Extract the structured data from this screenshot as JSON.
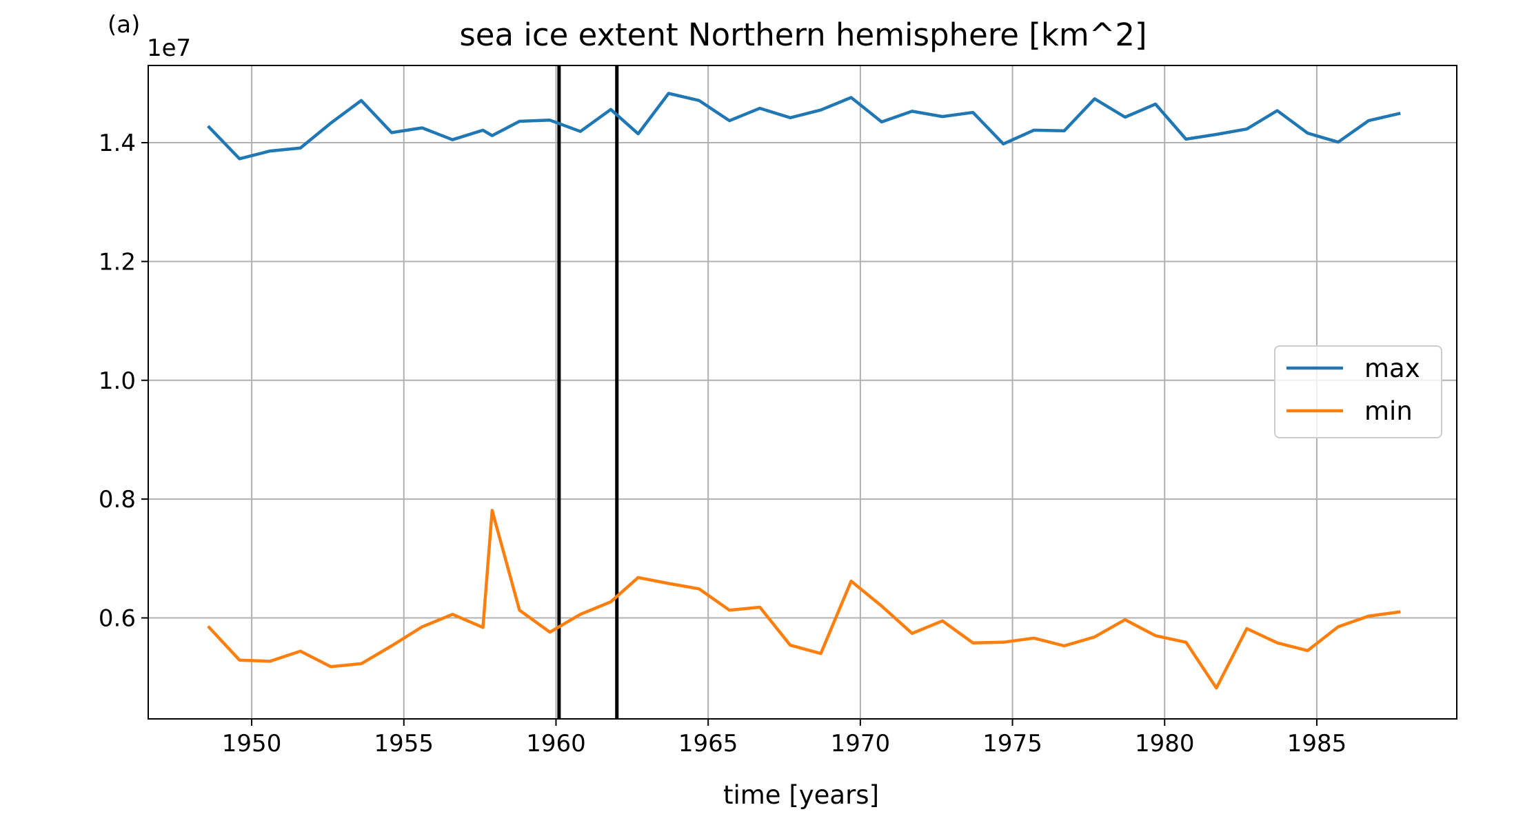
{
  "panel_label": "(a)",
  "chart_data": {
    "type": "line",
    "title": "sea ice extent Northern hemisphere [km^2]",
    "xlabel": "time [years]",
    "ylabel": "",
    "y_offset_label": "1e7",
    "xlim": [
      1946.6,
      1989.6
    ],
    "ylim": [
      4300000.0,
      15300000.0
    ],
    "xticks": [
      1950,
      1955,
      1960,
      1965,
      1970,
      1975,
      1980,
      1985
    ],
    "xtick_labels": [
      "1950",
      "1955",
      "1960",
      "1965",
      "1970",
      "1975",
      "1980",
      "1985"
    ],
    "yticks": [
      6000000,
      8000000,
      10000000,
      12000000,
      14000000
    ],
    "ytick_labels": [
      "0.6",
      "0.8",
      "1.0",
      "1.2",
      "1.4"
    ],
    "grid": true,
    "legend_position": "center-right",
    "vertical_lines": [
      1960.1,
      1962.0
    ],
    "series": [
      {
        "name": "max",
        "color": "#1f77b4",
        "x": [
          1948.6,
          1949.6,
          1950.6,
          1951.6,
          1952.6,
          1953.6,
          1954.6,
          1955.6,
          1956.6,
          1957.6,
          1957.9,
          1958.8,
          1959.8,
          1960.8,
          1961.8,
          1962.7,
          1963.7,
          1964.7,
          1965.7,
          1966.7,
          1967.7,
          1968.7,
          1969.7,
          1970.7,
          1971.7,
          1972.7,
          1973.7,
          1974.7,
          1975.7,
          1976.7,
          1977.7,
          1978.7,
          1979.7,
          1980.7,
          1981.7,
          1982.7,
          1983.7,
          1984.7,
          1985.7,
          1986.7,
          1987.7
        ],
        "y": [
          14260000,
          13730000,
          13860000,
          13910000,
          14330000,
          14710000,
          14170000,
          14250000,
          14050000,
          14210000,
          14120000,
          14360000,
          14380000,
          14190000,
          14560000,
          14150000,
          14830000,
          14710000,
          14370000,
          14580000,
          14420000,
          14550000,
          14760000,
          14350000,
          14530000,
          14440000,
          14510000,
          13980000,
          14210000,
          14200000,
          14740000,
          14430000,
          14650000,
          14060000,
          14140000,
          14230000,
          14540000,
          14160000,
          14010000,
          14370000,
          14490000
        ]
      },
      {
        "name": "min",
        "color": "#ff7f0e",
        "x": [
          1948.6,
          1949.6,
          1950.6,
          1951.6,
          1952.6,
          1953.6,
          1954.6,
          1955.6,
          1956.6,
          1957.6,
          1957.9,
          1958.8,
          1959.8,
          1960.8,
          1961.8,
          1962.7,
          1963.7,
          1964.7,
          1965.7,
          1966.7,
          1967.7,
          1968.7,
          1969.7,
          1970.7,
          1971.7,
          1972.7,
          1973.7,
          1974.7,
          1975.7,
          1976.7,
          1977.7,
          1978.7,
          1979.7,
          1980.7,
          1981.7,
          1982.7,
          1983.7,
          1984.7,
          1985.7,
          1986.7,
          1987.7
        ],
        "y": [
          5840000,
          5290000,
          5270000,
          5440000,
          5180000,
          5230000,
          5530000,
          5850000,
          6060000,
          5840000,
          7810000,
          6130000,
          5760000,
          6060000,
          6270000,
          6680000,
          6580000,
          6490000,
          6130000,
          6180000,
          5540000,
          5400000,
          6620000,
          6200000,
          5740000,
          5950000,
          5580000,
          5590000,
          5660000,
          5530000,
          5680000,
          5970000,
          5700000,
          5590000,
          4820000,
          5820000,
          5580000,
          5450000,
          5850000,
          6030000,
          6100000
        ]
      }
    ]
  }
}
